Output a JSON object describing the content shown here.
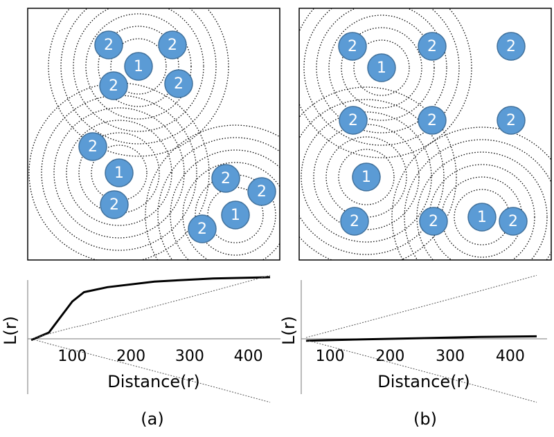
{
  "panels": [
    {
      "caption": "(a)",
      "nodes": [
        "2",
        "2",
        "1",
        "2",
        "2",
        "2",
        "1",
        "2",
        "2",
        "2",
        "1",
        "2"
      ],
      "plot": {
        "type": "line",
        "xlabel": "Distance(r)",
        "ylabel": "L(r)",
        "xlim": [
          24,
          437
        ],
        "ylim": [
          -100,
          100
        ],
        "xticks": [
          100,
          200,
          300,
          400
        ],
        "x": [
          30,
          60,
          80,
          100,
          120,
          160,
          240,
          340,
          437
        ],
        "series": [
          {
            "name": "L(r)",
            "style": "solid",
            "values": [
              -2,
              10,
              35,
              60,
              75,
              83,
              92,
              97,
              99
            ]
          },
          {
            "name": "upper envelope",
            "style": "dotted",
            "values": [
              0,
              8,
              13,
              18,
              22,
              32,
              52,
              77,
              102
            ]
          },
          {
            "name": "lower envelope",
            "style": "dotted",
            "values": [
              0,
              -8,
              -13,
              -18,
              -22,
              -32,
              -52,
              -77,
              -102
            ]
          }
        ]
      }
    },
    {
      "caption": "(b)",
      "nodes": [
        "2",
        "2",
        "2",
        "1",
        "2",
        "2",
        "2",
        "1",
        "2",
        "2",
        "1",
        "2"
      ],
      "plot": {
        "type": "line",
        "xlabel": "Distance(r)",
        "ylabel": "L(r)",
        "xlim": [
          52,
          444
        ],
        "ylim": [
          -100,
          100
        ],
        "xticks": [
          100,
          200,
          300,
          400
        ],
        "x": [
          60,
          150,
          250,
          350,
          444
        ],
        "series": [
          {
            "name": "L(r)",
            "style": "solid",
            "values": [
              -3,
              -1,
              1,
              3,
              4
            ]
          },
          {
            "name": "upper envelope",
            "style": "dotted",
            "values": [
              2,
              25,
              51,
              77,
              102
            ]
          },
          {
            "name": "lower envelope",
            "style": "dotted",
            "values": [
              -2,
              -25,
              -51,
              -77,
              -102
            ]
          }
        ]
      }
    }
  ]
}
